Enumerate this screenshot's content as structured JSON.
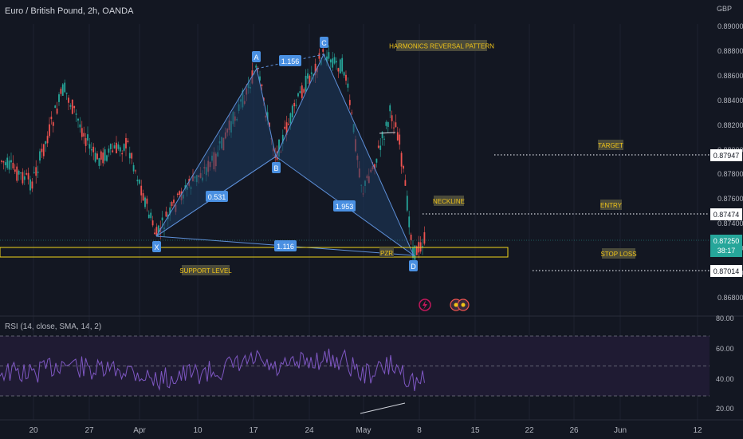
{
  "header": {
    "title": "Euro / British Pound, 2h, OANDA"
  },
  "price_scale": {
    "currency": "GBP",
    "ticks": [
      "0.89000",
      "0.88800",
      "0.88600",
      "0.88400",
      "0.88200",
      "0.88000",
      "0.87800",
      "0.87600",
      "0.87400",
      "0.87200",
      "0.87000",
      "0.86800"
    ],
    "badges": [
      {
        "value": "0.87947",
        "kind": "target"
      },
      {
        "value": "0.87474",
        "kind": "entry"
      },
      {
        "value": "0.87250",
        "kind": "last"
      },
      {
        "value": "0.87014",
        "kind": "stop"
      }
    ],
    "countdown": "38:17"
  },
  "time_axis": {
    "labels": [
      "20",
      "27",
      "Apr",
      "10",
      "17",
      "24",
      "May",
      "8",
      "15",
      "22",
      "26",
      "Jun",
      "12"
    ]
  },
  "pattern": {
    "points": {
      "X": "X",
      "A": "A",
      "B": "B",
      "C": "C",
      "D": "D"
    },
    "ratios": {
      "ab": "0.531",
      "ac": "1.156",
      "bc": "1.953",
      "xd": "1.116"
    },
    "pzr": "PZR"
  },
  "annotations": {
    "harmonics": "HARMONICS REVERSAL PATTERN",
    "target": "TARGET",
    "neckline": "NECKLINE",
    "entry": "ENTRY",
    "stop_loss": "STOP LOSS",
    "support": "SUPPORT LEVEL"
  },
  "rsi": {
    "title": "RSI (14, close, SMA, 14, 2)",
    "ticks": [
      "80.00",
      "60.00",
      "40.00",
      "20.00"
    ]
  },
  "colors": {
    "background": "#131722",
    "up": "#26a69a",
    "down": "#ef5350",
    "pattern_fill": "#1e3a5f",
    "pattern_line": "#5d8fd8",
    "label_box": "#4a90e2",
    "annotation_bg": "#4a4a3a",
    "annotation_text": "#f0c419",
    "support": "#f0d419",
    "rsi_line": "#7e57c2",
    "rsi_band": "#1f1b33"
  }
}
